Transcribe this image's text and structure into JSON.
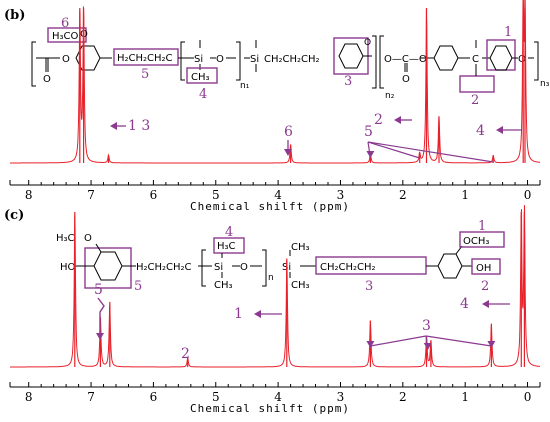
{
  "figure": {
    "accent": "#8B3A8F",
    "spectrum_color": "#E8202A",
    "axis_color": "#000000"
  },
  "chart_data": [
    {
      "type": "line",
      "panel_label": "(b)",
      "xlabel": "Chemical shilft (ppm)",
      "x_reversed": true,
      "xlim": [
        8.3,
        -0.2
      ],
      "x_ticks": [
        "8",
        "7",
        "6",
        "5",
        "4",
        "3",
        "2",
        "1",
        "0"
      ],
      "grid": false,
      "legend": "none",
      "peaks": [
        {
          "ppm": 7.18,
          "height": 1.0,
          "label": "1 3"
        },
        {
          "ppm": 7.12,
          "height": 1.0
        },
        {
          "ppm": 6.72,
          "height": 0.05
        },
        {
          "ppm": 3.8,
          "height": 0.12,
          "label": "6"
        },
        {
          "ppm": 2.52,
          "height": 0.06,
          "label": "5"
        },
        {
          "ppm": 1.73,
          "height": 0.06
        },
        {
          "ppm": 1.62,
          "height": 1.0,
          "label": "2"
        },
        {
          "ppm": 1.42,
          "height": 0.3
        },
        {
          "ppm": 0.55,
          "height": 0.05
        },
        {
          "ppm": 0.07,
          "height": 1.0,
          "label": "4"
        },
        {
          "ppm": 0.04,
          "height": 1.0
        }
      ]
    },
    {
      "type": "line",
      "panel_label": "(c)",
      "xlabel": "Chemical shilft (ppm)",
      "x_reversed": true,
      "xlim": [
        8.3,
        -0.2
      ],
      "x_ticks": [
        "8",
        "7",
        "6",
        "5",
        "4",
        "3",
        "2",
        "1",
        "0"
      ],
      "grid": false,
      "legend": "none",
      "peaks": [
        {
          "ppm": 7.26,
          "height": 1.0
        },
        {
          "ppm": 6.85,
          "height": 0.32,
          "label": "5"
        },
        {
          "ppm": 6.7,
          "height": 0.42
        },
        {
          "ppm": 5.45,
          "height": 0.06,
          "label": "2"
        },
        {
          "ppm": 3.86,
          "height": 0.7,
          "label": "1"
        },
        {
          "ppm": 2.52,
          "height": 0.3,
          "label": "3"
        },
        {
          "ppm": 1.62,
          "height": 0.2
        },
        {
          "ppm": 1.55,
          "height": 0.17
        },
        {
          "ppm": 0.58,
          "height": 0.28
        },
        {
          "ppm": 0.1,
          "height": 1.0,
          "label": "4"
        },
        {
          "ppm": 0.05,
          "height": 1.0
        }
      ]
    }
  ],
  "structure_b": {
    "panel": "(b)",
    "h3co": "H₃CO",
    "oxygen_top": "O",
    "ester_o": "O",
    "carbonyl_o": "O",
    "chain1": "H₂CH₂CH₂C",
    "si1": "Si",
    "ch3_box": "CH₃",
    "ox": "O",
    "n1": "n₁",
    "si2": "Si",
    "chain2": "CH₂CH₂CH₂",
    "o_ring": "O",
    "carbonate": "O—C—O",
    "o_bottom": "O",
    "n2": "n₂",
    "c_center": "C",
    "o_end": "O",
    "n3": "n₃",
    "num1": "1",
    "num2": "2",
    "num3": "3",
    "num4": "4",
    "num5": "5",
    "num6": "6"
  },
  "structure_c": {
    "panel": "(c)",
    "h3co": "H₃C",
    "o_top": "O",
    "ho": "HO",
    "chain1": "H₂CH₂CH₂C",
    "h3c_box": "H₃C",
    "si1": "Si",
    "ch3_1": "CH₃",
    "o_mid": "O",
    "n": "n",
    "si2": "Si",
    "ch3_top": "CH₃",
    "ch3_bot": "CH₃",
    "chain2": "CH₂CH₂CH₂",
    "och3": "OCH₃",
    "oh": "OH",
    "num1": "1",
    "num2": "2",
    "num3": "3",
    "num4": "4",
    "num5": "5"
  }
}
